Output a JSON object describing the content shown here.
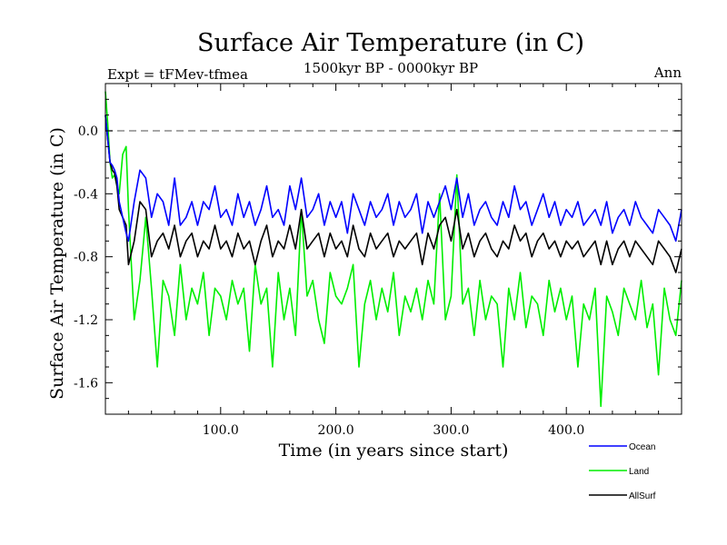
{
  "chart_data": {
    "type": "line",
    "title": "Surface Air Temperature (in C)",
    "subtitle": "1500kyr BP - 0000kyr BP",
    "left_label": "Expt = tFMev-tfmea",
    "right_label": "Ann",
    "xlabel": "Time (in years since start)",
    "ylabel": "Surface Air Temperature (in C)",
    "xlim": [
      0,
      500
    ],
    "ylim": [
      -1.8,
      0.3
    ],
    "x_ticks": [
      100,
      200,
      300,
      400
    ],
    "x_tick_labels": [
      "100.0",
      "200.0",
      "300.0",
      "400.0"
    ],
    "y_ticks": [
      0.0,
      -0.4,
      -0.8,
      -1.2,
      -1.6
    ],
    "y_tick_labels": [
      "0.0",
      "-0.4",
      "-0.8",
      "-1.2",
      "-1.6"
    ],
    "reference_line": {
      "y": 0.0,
      "style": "dashed"
    },
    "legend_position": "bottom-right",
    "x": [
      0,
      2,
      4,
      6,
      8,
      10,
      12,
      15,
      18,
      20,
      25,
      30,
      35,
      40,
      45,
      50,
      55,
      60,
      65,
      70,
      75,
      80,
      85,
      90,
      95,
      100,
      105,
      110,
      115,
      120,
      125,
      130,
      135,
      140,
      145,
      150,
      155,
      160,
      165,
      170,
      175,
      180,
      185,
      190,
      195,
      200,
      205,
      210,
      215,
      220,
      225,
      230,
      235,
      240,
      245,
      250,
      255,
      260,
      265,
      270,
      275,
      280,
      285,
      290,
      295,
      300,
      305,
      310,
      315,
      320,
      325,
      330,
      335,
      340,
      345,
      350,
      355,
      360,
      365,
      370,
      375,
      380,
      385,
      390,
      395,
      400,
      405,
      410,
      415,
      420,
      425,
      430,
      435,
      440,
      445,
      450,
      455,
      460,
      465,
      470,
      475,
      480,
      485,
      490,
      495,
      500
    ],
    "series": [
      {
        "name": "Ocean",
        "color": "#0000ff",
        "values": [
          0.1,
          -0.05,
          -0.2,
          -0.22,
          -0.25,
          -0.3,
          -0.45,
          -0.55,
          -0.65,
          -0.7,
          -0.45,
          -0.25,
          -0.3,
          -0.55,
          -0.4,
          -0.45,
          -0.6,
          -0.3,
          -0.6,
          -0.55,
          -0.45,
          -0.6,
          -0.45,
          -0.5,
          -0.35,
          -0.55,
          -0.5,
          -0.6,
          -0.4,
          -0.55,
          -0.45,
          -0.6,
          -0.5,
          -0.35,
          -0.55,
          -0.5,
          -0.6,
          -0.35,
          -0.5,
          -0.3,
          -0.55,
          -0.5,
          -0.4,
          -0.6,
          -0.45,
          -0.55,
          -0.45,
          -0.65,
          -0.4,
          -0.5,
          -0.6,
          -0.45,
          -0.55,
          -0.5,
          -0.4,
          -0.6,
          -0.45,
          -0.55,
          -0.5,
          -0.4,
          -0.65,
          -0.45,
          -0.55,
          -0.45,
          -0.35,
          -0.5,
          -0.3,
          -0.55,
          -0.4,
          -0.6,
          -0.5,
          -0.45,
          -0.55,
          -0.6,
          -0.45,
          -0.55,
          -0.35,
          -0.5,
          -0.45,
          -0.6,
          -0.5,
          -0.4,
          -0.55,
          -0.45,
          -0.6,
          -0.5,
          -0.55,
          -0.45,
          -0.6,
          -0.55,
          -0.5,
          -0.6,
          -0.45,
          -0.65,
          -0.55,
          -0.5,
          -0.6,
          -0.45,
          -0.55,
          -0.6,
          -0.65,
          -0.5,
          -0.55,
          -0.6,
          -0.7,
          -0.5
        ]
      },
      {
        "name": "Land",
        "color": "#00ee00",
        "values": [
          0.25,
          0.05,
          -0.2,
          -0.3,
          -0.28,
          -0.35,
          -0.4,
          -0.15,
          -0.1,
          -0.5,
          -1.2,
          -0.95,
          -0.55,
          -1.0,
          -1.5,
          -0.95,
          -1.05,
          -1.3,
          -0.85,
          -1.2,
          -1.0,
          -1.1,
          -0.9,
          -1.3,
          -1.0,
          -1.05,
          -1.2,
          -0.95,
          -1.1,
          -1.0,
          -1.4,
          -0.85,
          -1.1,
          -1.0,
          -1.5,
          -0.9,
          -1.2,
          -1.0,
          -1.3,
          -0.5,
          -1.05,
          -0.95,
          -1.2,
          -1.35,
          -0.9,
          -1.05,
          -1.1,
          -1.0,
          -0.85,
          -1.5,
          -1.1,
          -0.95,
          -1.2,
          -1.0,
          -1.15,
          -0.9,
          -1.3,
          -1.05,
          -1.15,
          -1.0,
          -1.2,
          -0.95,
          -1.1,
          -0.4,
          -1.2,
          -1.05,
          -0.28,
          -1.1,
          -1.0,
          -1.3,
          -0.95,
          -1.2,
          -1.05,
          -1.1,
          -1.5,
          -1.0,
          -1.2,
          -0.9,
          -1.25,
          -1.05,
          -1.1,
          -1.3,
          -0.95,
          -1.15,
          -1.0,
          -1.2,
          -1.05,
          -1.5,
          -1.1,
          -1.2,
          -1.0,
          -1.75,
          -1.05,
          -1.15,
          -1.3,
          -1.0,
          -1.1,
          -1.2,
          -0.95,
          -1.25,
          -1.1,
          -1.55,
          -1.0,
          -1.2,
          -1.3,
          -0.95
        ]
      },
      {
        "name": "AllSurf",
        "color": "#000000",
        "values": [
          0.1,
          -0.05,
          -0.2,
          -0.25,
          -0.27,
          -0.35,
          -0.5,
          -0.55,
          -0.6,
          -0.85,
          -0.7,
          -0.45,
          -0.5,
          -0.8,
          -0.7,
          -0.65,
          -0.75,
          -0.6,
          -0.8,
          -0.7,
          -0.65,
          -0.8,
          -0.7,
          -0.75,
          -0.6,
          -0.75,
          -0.7,
          -0.8,
          -0.65,
          -0.75,
          -0.7,
          -0.85,
          -0.7,
          -0.6,
          -0.8,
          -0.7,
          -0.75,
          -0.6,
          -0.75,
          -0.5,
          -0.75,
          -0.7,
          -0.65,
          -0.8,
          -0.65,
          -0.75,
          -0.7,
          -0.8,
          -0.6,
          -0.75,
          -0.8,
          -0.65,
          -0.75,
          -0.7,
          -0.65,
          -0.8,
          -0.7,
          -0.75,
          -0.7,
          -0.65,
          -0.85,
          -0.65,
          -0.75,
          -0.6,
          -0.55,
          -0.7,
          -0.5,
          -0.75,
          -0.65,
          -0.8,
          -0.7,
          -0.65,
          -0.75,
          -0.8,
          -0.7,
          -0.75,
          -0.6,
          -0.7,
          -0.65,
          -0.8,
          -0.7,
          -0.65,
          -0.75,
          -0.7,
          -0.8,
          -0.7,
          -0.75,
          -0.7,
          -0.8,
          -0.75,
          -0.7,
          -0.85,
          -0.7,
          -0.85,
          -0.75,
          -0.7,
          -0.8,
          -0.7,
          -0.75,
          -0.8,
          -0.85,
          -0.7,
          -0.75,
          -0.8,
          -0.9,
          -0.75
        ]
      }
    ]
  }
}
